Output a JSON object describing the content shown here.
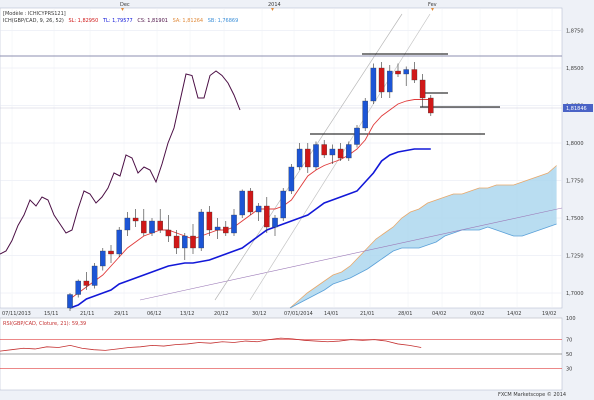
{
  "header": {
    "model_line": "[Modèle : ICHICYPRS121]",
    "ichimoku_name": "ICH(GBP/CAD, 9, 26, 52)",
    "sl_label": "SL: 1,82950",
    "tl_label": "TL: 1,79577",
    "cs_label": "CS: 1,81901",
    "sa_label": "SA: 1,81264",
    "sb_label": "SB: 1,76869"
  },
  "top_markers": [
    {
      "label": "Dec",
      "x": "Dec"
    },
    {
      "label": "2014",
      "x": "2014"
    },
    {
      "label": "Fev",
      "x": "Fev"
    }
  ],
  "price_axis": {
    "ticks": [
      "1,8750",
      "1,8500",
      "1,8250",
      "1,8000",
      "1,7750",
      "1,7500",
      "1,7250",
      "1,7000"
    ],
    "current_price": "1,81846"
  },
  "date_axis": {
    "ticks": [
      "07/11/2013",
      "15/11",
      "21/11",
      "29/11",
      "06/12",
      "13/12",
      "20/12",
      "30/12",
      "07/01/2014",
      "14/01",
      "21/01",
      "28/01",
      "04/02",
      "09/02",
      "14/02",
      "19/02"
    ]
  },
  "rsi": {
    "label": "RSI(GBP/CAD, Cloture, 21): 59,39",
    "ticks": [
      "100",
      "70",
      "50",
      "30"
    ]
  },
  "footer": {
    "copyright": "FXCM Marketscope © 2014"
  },
  "colors": {
    "bull_candle": "#1c55d6",
    "bear_candle": "#d01818",
    "tenkan": "#e03a3a",
    "kijun": "#1218d8",
    "chikou": "#4b0f45",
    "cloud_fill": "#a8d4ee",
    "senkou_a": "#e8a86a",
    "senkou_b": "#5aa0d8"
  },
  "chart_data": {
    "type": "candlestick",
    "symbol": "GBP/CAD",
    "ylim": [
      1.69,
      1.89
    ],
    "candles": [
      {
        "o": 1.69,
        "h": 1.7,
        "l": 1.688,
        "c": 1.699
      },
      {
        "o": 1.699,
        "h": 1.709,
        "l": 1.697,
        "c": 1.708
      },
      {
        "o": 1.708,
        "h": 1.714,
        "l": 1.702,
        "c": 1.705
      },
      {
        "o": 1.705,
        "h": 1.72,
        "l": 1.703,
        "c": 1.718
      },
      {
        "o": 1.718,
        "h": 1.73,
        "l": 1.715,
        "c": 1.728
      },
      {
        "o": 1.728,
        "h": 1.732,
        "l": 1.72,
        "c": 1.726
      },
      {
        "o": 1.726,
        "h": 1.744,
        "l": 1.724,
        "c": 1.742
      },
      {
        "o": 1.742,
        "h": 1.754,
        "l": 1.738,
        "c": 1.75
      },
      {
        "o": 1.75,
        "h": 1.756,
        "l": 1.744,
        "c": 1.748
      },
      {
        "o": 1.748,
        "h": 1.756,
        "l": 1.738,
        "c": 1.74
      },
      {
        "o": 1.74,
        "h": 1.75,
        "l": 1.738,
        "c": 1.748
      },
      {
        "o": 1.748,
        "h": 1.756,
        "l": 1.74,
        "c": 1.742
      },
      {
        "o": 1.742,
        "h": 1.752,
        "l": 1.734,
        "c": 1.738
      },
      {
        "o": 1.738,
        "h": 1.742,
        "l": 1.726,
        "c": 1.73
      },
      {
        "o": 1.73,
        "h": 1.74,
        "l": 1.722,
        "c": 1.738
      },
      {
        "o": 1.738,
        "h": 1.746,
        "l": 1.726,
        "c": 1.73
      },
      {
        "o": 1.73,
        "h": 1.756,
        "l": 1.728,
        "c": 1.754
      },
      {
        "o": 1.754,
        "h": 1.758,
        "l": 1.738,
        "c": 1.742
      },
      {
        "o": 1.742,
        "h": 1.75,
        "l": 1.736,
        "c": 1.744
      },
      {
        "o": 1.744,
        "h": 1.748,
        "l": 1.738,
        "c": 1.74
      },
      {
        "o": 1.74,
        "h": 1.756,
        "l": 1.738,
        "c": 1.752
      },
      {
        "o": 1.752,
        "h": 1.769,
        "l": 1.75,
        "c": 1.768
      },
      {
        "o": 1.768,
        "h": 1.77,
        "l": 1.752,
        "c": 1.754
      },
      {
        "o": 1.754,
        "h": 1.76,
        "l": 1.748,
        "c": 1.758
      },
      {
        "o": 1.758,
        "h": 1.764,
        "l": 1.74,
        "c": 1.744
      },
      {
        "o": 1.744,
        "h": 1.752,
        "l": 1.738,
        "c": 1.75
      },
      {
        "o": 1.75,
        "h": 1.77,
        "l": 1.748,
        "c": 1.768
      },
      {
        "o": 1.768,
        "h": 1.786,
        "l": 1.766,
        "c": 1.784
      },
      {
        "o": 1.784,
        "h": 1.8,
        "l": 1.782,
        "c": 1.796
      },
      {
        "o": 1.796,
        "h": 1.8,
        "l": 1.78,
        "c": 1.784
      },
      {
        "o": 1.784,
        "h": 1.801,
        "l": 1.782,
        "c": 1.799
      },
      {
        "o": 1.799,
        "h": 1.802,
        "l": 1.79,
        "c": 1.792
      },
      {
        "o": 1.792,
        "h": 1.799,
        "l": 1.786,
        "c": 1.796
      },
      {
        "o": 1.796,
        "h": 1.8,
        "l": 1.788,
        "c": 1.79
      },
      {
        "o": 1.79,
        "h": 1.801,
        "l": 1.788,
        "c": 1.799
      },
      {
        "o": 1.799,
        "h": 1.812,
        "l": 1.797,
        "c": 1.81
      },
      {
        "o": 1.81,
        "h": 1.83,
        "l": 1.808,
        "c": 1.828
      },
      {
        "o": 1.828,
        "h": 1.853,
        "l": 1.826,
        "c": 1.85
      },
      {
        "o": 1.85,
        "h": 1.854,
        "l": 1.83,
        "c": 1.834
      },
      {
        "o": 1.834,
        "h": 1.852,
        "l": 1.83,
        "c": 1.848
      },
      {
        "o": 1.848,
        "h": 1.853,
        "l": 1.844,
        "c": 1.846
      },
      {
        "o": 1.846,
        "h": 1.851,
        "l": 1.838,
        "c": 1.849
      },
      {
        "o": 1.849,
        "h": 1.854,
        "l": 1.84,
        "c": 1.842
      },
      {
        "o": 1.842,
        "h": 1.846,
        "l": 1.824,
        "c": 1.83
      },
      {
        "o": 1.83,
        "h": 1.832,
        "l": 1.818,
        "c": 1.82
      }
    ],
    "tenkan": [
      1.696,
      1.7,
      1.704,
      1.708,
      1.712,
      1.718,
      1.724,
      1.73,
      1.734,
      1.738,
      1.74,
      1.742,
      1.742,
      1.74,
      1.738,
      1.736,
      1.738,
      1.74,
      1.742,
      1.742,
      1.744,
      1.748,
      1.752,
      1.756,
      1.756,
      1.756,
      1.758,
      1.762,
      1.77,
      1.778,
      1.782,
      1.785,
      1.787,
      1.789,
      1.792,
      1.796,
      1.802,
      1.812,
      1.818,
      1.822,
      1.826,
      1.828,
      1.829,
      1.829,
      1.829
    ],
    "kijun": [
      1.69,
      1.692,
      1.696,
      1.698,
      1.7,
      1.702,
      1.706,
      1.708,
      1.71,
      1.712,
      1.714,
      1.716,
      1.718,
      1.719,
      1.72,
      1.72,
      1.721,
      1.722,
      1.724,
      1.726,
      1.728,
      1.73,
      1.734,
      1.738,
      1.742,
      1.744,
      1.746,
      1.748,
      1.75,
      1.752,
      1.756,
      1.76,
      1.762,
      1.764,
      1.766,
      1.768,
      1.774,
      1.78,
      1.788,
      1.792,
      1.794,
      1.795,
      1.796,
      1.796,
      1.796
    ],
    "chikou": [
      1.726,
      1.728,
      1.735,
      1.745,
      1.752,
      1.762,
      1.758,
      1.764,
      1.762,
      1.752,
      1.746,
      1.74,
      1.742,
      1.756,
      1.768,
      1.766,
      1.76,
      1.764,
      1.77,
      1.78,
      1.778,
      1.792,
      1.79,
      1.78,
      1.784,
      1.782,
      1.774,
      1.786,
      1.8,
      1.81,
      1.828,
      1.846,
      1.845,
      1.83,
      1.83,
      1.845,
      1.848,
      1.845,
      1.84,
      1.832,
      1.822
    ],
    "senkou_a": [
      1.69,
      1.695,
      1.7,
      1.704,
      1.708,
      1.712,
      1.714,
      1.718,
      1.724,
      1.73,
      1.736,
      1.74,
      1.744,
      1.75,
      1.754,
      1.756,
      1.76,
      1.762,
      1.764,
      1.766,
      1.766,
      1.768,
      1.77,
      1.77,
      1.772,
      1.772,
      1.772,
      1.774,
      1.776,
      1.778,
      1.78,
      1.785
    ],
    "senkou_b": [
      1.69,
      1.693,
      1.696,
      1.699,
      1.702,
      1.706,
      1.708,
      1.71,
      1.713,
      1.716,
      1.72,
      1.724,
      1.728,
      1.73,
      1.73,
      1.73,
      1.732,
      1.734,
      1.738,
      1.74,
      1.742,
      1.742,
      1.742,
      1.744,
      1.742,
      1.74,
      1.738,
      1.738,
      1.74,
      1.742,
      1.744,
      1.746
    ],
    "rsi_values": [
      54,
      56,
      58,
      57,
      60,
      59,
      62,
      58,
      56,
      55,
      57,
      59,
      60,
      62,
      61,
      63,
      64,
      66,
      65,
      67,
      66,
      68,
      67,
      70,
      72,
      71,
      69,
      68,
      67,
      68,
      70,
      69,
      70,
      68,
      64,
      62,
      59
    ]
  }
}
